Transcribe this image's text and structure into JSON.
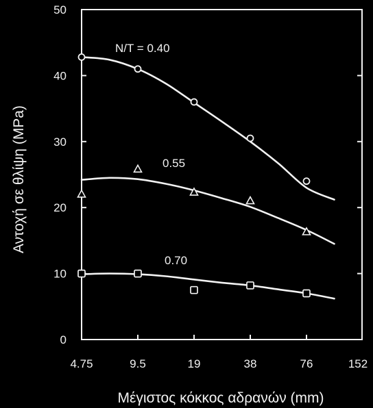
{
  "chart_data": {
    "type": "line",
    "xlabel": "Μέγιστος κόκκος αδρανών (mm)",
    "ylabel": "Αντοχή σε θλίψη (MPa)",
    "x_scale": "log2",
    "x_ticks": [
      "4.75",
      "9.5",
      "19",
      "38",
      "76",
      "152"
    ],
    "x_tick_values": [
      4.75,
      9.5,
      19,
      38,
      76,
      152
    ],
    "xlim": [
      4.75,
      152
    ],
    "y_ticks": [
      "0",
      "10",
      "20",
      "30",
      "40",
      "50"
    ],
    "y_tick_values": [
      0,
      10,
      20,
      30,
      40,
      50
    ],
    "ylim": [
      0,
      50
    ],
    "grid": false,
    "series": [
      {
        "name": "N/T = 0.40",
        "marker": "circle",
        "points": [
          [
            4.75,
            42.8
          ],
          [
            9.5,
            41.0
          ],
          [
            19,
            36.0
          ],
          [
            38,
            30.5
          ],
          [
            76,
            24.0
          ]
        ],
        "curve": [
          [
            4.75,
            42.8
          ],
          [
            6.7,
            42.4
          ],
          [
            9.5,
            41.0
          ],
          [
            13.4,
            38.8
          ],
          [
            19,
            35.9
          ],
          [
            26.9,
            33.0
          ],
          [
            38,
            30.0
          ],
          [
            53.7,
            26.7
          ],
          [
            76,
            23.0
          ],
          [
            107,
            21.2
          ]
        ]
      },
      {
        "name": "0.55",
        "marker": "triangle",
        "points": [
          [
            4.75,
            22.0
          ],
          [
            9.5,
            25.8
          ],
          [
            19,
            22.3
          ],
          [
            38,
            21.0
          ],
          [
            76,
            16.3
          ]
        ],
        "curve": [
          [
            4.75,
            24.2
          ],
          [
            6.7,
            24.5
          ],
          [
            9.5,
            24.3
          ],
          [
            13.4,
            23.6
          ],
          [
            19,
            22.6
          ],
          [
            26.9,
            21.4
          ],
          [
            38,
            20.1
          ],
          [
            53.7,
            18.4
          ],
          [
            76,
            16.6
          ],
          [
            107,
            14.5
          ]
        ]
      },
      {
        "name": "0.70",
        "marker": "square",
        "points": [
          [
            4.75,
            10.0
          ],
          [
            9.5,
            10.0
          ],
          [
            19,
            7.5
          ],
          [
            38,
            8.2
          ],
          [
            76,
            7.0
          ]
        ],
        "curve": [
          [
            4.75,
            9.9
          ],
          [
            6.7,
            10.0
          ],
          [
            9.5,
            9.9
          ],
          [
            13.4,
            9.6
          ],
          [
            19,
            9.1
          ],
          [
            26.9,
            8.6
          ],
          [
            38,
            8.2
          ],
          [
            53.7,
            7.6
          ],
          [
            76,
            7.0
          ],
          [
            107,
            6.2
          ]
        ]
      }
    ]
  },
  "style": {
    "background": "#000000",
    "foreground": "#f2f2f2"
  }
}
